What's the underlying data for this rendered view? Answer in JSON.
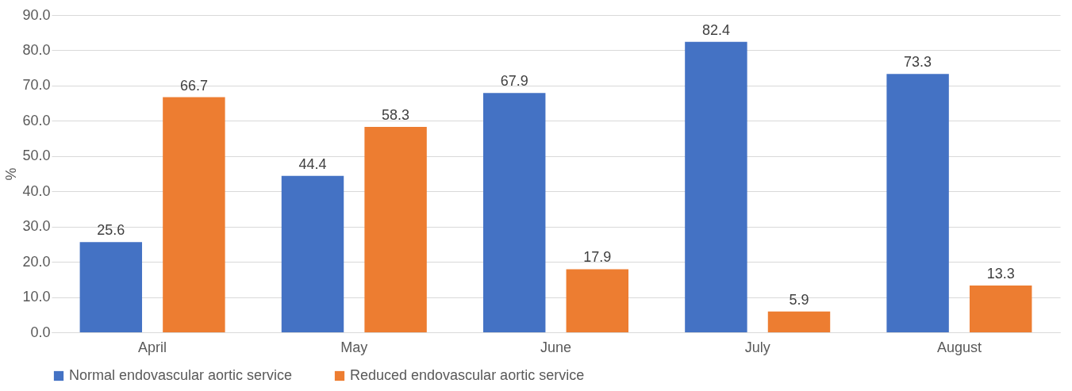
{
  "chart_data": {
    "type": "bar",
    "ylabel": "%",
    "categories": [
      "April",
      "May",
      "June",
      "July",
      "August"
    ],
    "series": [
      {
        "name": "Normal endovascular aortic service",
        "color": "#4472c4",
        "values": [
          25.6,
          44.4,
          67.9,
          82.4,
          73.3
        ]
      },
      {
        "name": "Reduced endovascular aortic service",
        "color": "#ed7d31",
        "values": [
          66.7,
          58.3,
          17.9,
          5.9,
          13.3
        ]
      }
    ],
    "ylim": [
      0,
      90
    ],
    "yticks": [
      {
        "value": 0,
        "label": "0.0"
      },
      {
        "value": 10,
        "label": "10.0"
      },
      {
        "value": 20,
        "label": "20.0"
      },
      {
        "value": 30,
        "label": "30.0"
      },
      {
        "value": 40,
        "label": "40.0"
      },
      {
        "value": 50,
        "label": "50.0"
      },
      {
        "value": 60,
        "label": "60.0"
      },
      {
        "value": 70,
        "label": "70.0"
      },
      {
        "value": 80,
        "label": "80.0"
      },
      {
        "value": 90,
        "label": "90.0"
      }
    ],
    "grid": "y",
    "legend": "bottom",
    "data_labels": true
  }
}
